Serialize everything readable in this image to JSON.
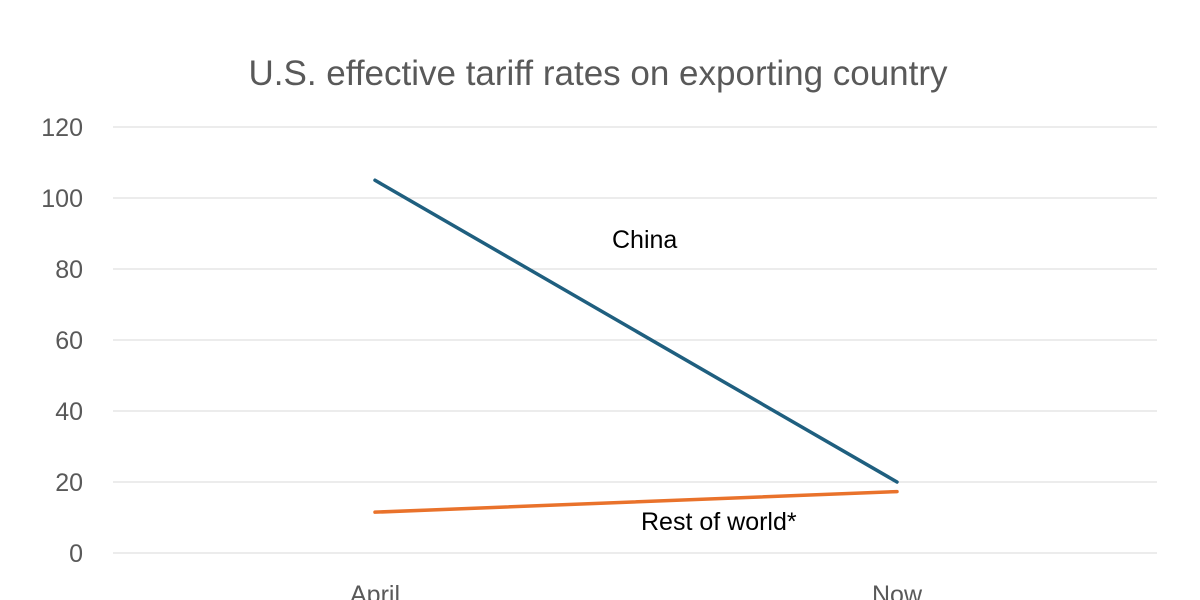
{
  "chart_data": {
    "type": "line",
    "title": "U.S. effective tariff rates on exporting country",
    "xlabel": "",
    "ylabel": "",
    "categories": [
      "April",
      "Now"
    ],
    "ylim": [
      0,
      120
    ],
    "yticks": [
      "0",
      "20",
      "40",
      "60",
      "80",
      "100",
      "120"
    ],
    "grid": true,
    "legend": "none",
    "series": [
      {
        "name": "China",
        "values": [
          105,
          20
        ],
        "color": "#1f5f7f"
      },
      {
        "name": "Rest of world*",
        "values": [
          11.5,
          17.3
        ],
        "color": "#e9722b"
      }
    ]
  }
}
